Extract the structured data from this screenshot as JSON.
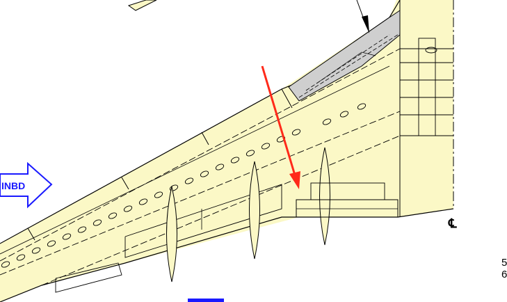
{
  "labels": {
    "direction": "INBD",
    "centerline": "℄",
    "edge_line1": "5",
    "edge_line2": "6"
  },
  "colors": {
    "wing_fill": "#fbf8c6",
    "flap_gray": "#cfcfcf",
    "line": "#000000",
    "arrow_red": "#ff2a1a",
    "inbd_blue": "#1a1aff",
    "inbd_fill": "#ffffff",
    "background": "#ffffff"
  },
  "icons": {
    "direction_arrow": "inbd-arrow-icon",
    "pointer_arrow": "red-pointer-arrow-icon"
  }
}
